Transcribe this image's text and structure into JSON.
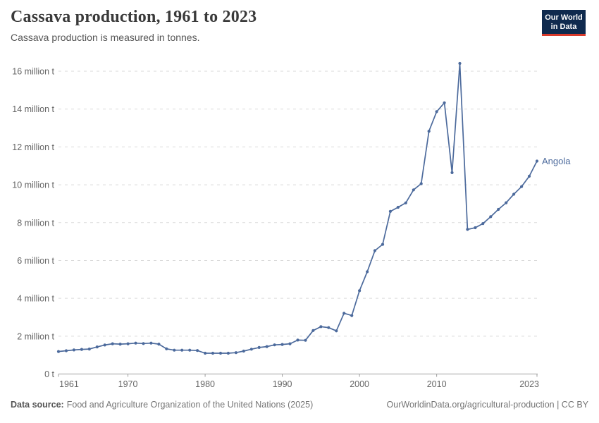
{
  "header": {
    "title": "Cassava production, 1961 to 2023",
    "subtitle": "Cassava production is measured in tonnes.",
    "logo_line1": "Our World",
    "logo_line2": "in Data"
  },
  "chart_data": {
    "type": "line",
    "title": "Cassava production, 1961 to 2023",
    "unit": "million tonnes",
    "xlabel": "",
    "ylabel": "tonnes",
    "xlim": [
      1961,
      2023
    ],
    "ylim": [
      0,
      16
    ],
    "grid": "horizontal-dashed",
    "legend_position": "end-of-line-label",
    "xticks": [
      1961,
      1970,
      1980,
      1990,
      2000,
      2010,
      2023
    ],
    "yticks": [
      {
        "value": 0,
        "label": "0 t"
      },
      {
        "value": 2,
        "label": "2 million t"
      },
      {
        "value": 4,
        "label": "4 million t"
      },
      {
        "value": 6,
        "label": "6 million t"
      },
      {
        "value": 8,
        "label": "8 million t"
      },
      {
        "value": 10,
        "label": "10 million t"
      },
      {
        "value": 12,
        "label": "12 million t"
      },
      {
        "value": 14,
        "label": "14 million t"
      },
      {
        "value": 16,
        "label": "16 million t"
      }
    ],
    "x": [
      1961,
      1962,
      1963,
      1964,
      1965,
      1966,
      1967,
      1968,
      1969,
      1970,
      1971,
      1972,
      1973,
      1974,
      1975,
      1976,
      1977,
      1978,
      1979,
      1980,
      1981,
      1982,
      1983,
      1984,
      1985,
      1986,
      1987,
      1988,
      1989,
      1990,
      1991,
      1992,
      1993,
      1994,
      1995,
      1996,
      1997,
      1998,
      1999,
      2000,
      2001,
      2002,
      2003,
      2004,
      2005,
      2006,
      2007,
      2008,
      2009,
      2010,
      2011,
      2012,
      2013,
      2014,
      2015,
      2016,
      2017,
      2018,
      2019,
      2020,
      2021,
      2022,
      2023
    ],
    "series": [
      {
        "name": "Angola",
        "color": "#4C6A9C",
        "values": [
          1.19,
          1.23,
          1.27,
          1.3,
          1.32,
          1.43,
          1.53,
          1.6,
          1.58,
          1.6,
          1.63,
          1.61,
          1.63,
          1.58,
          1.33,
          1.26,
          1.26,
          1.26,
          1.24,
          1.1,
          1.1,
          1.1,
          1.1,
          1.13,
          1.21,
          1.31,
          1.4,
          1.45,
          1.54,
          1.56,
          1.6,
          1.79,
          1.78,
          2.3,
          2.5,
          2.45,
          2.28,
          3.21,
          3.09,
          4.4,
          5.4,
          6.52,
          6.85,
          8.59,
          8.81,
          9.04,
          9.73,
          10.06,
          12.83,
          13.86,
          14.33,
          10.64,
          16.41,
          7.64,
          7.73,
          7.95,
          8.31,
          8.7,
          9.05,
          9.5,
          9.9,
          10.45,
          11.25
        ]
      }
    ]
  },
  "footer": {
    "data_source_label": "Data source:",
    "data_source_text": "Food and Agriculture Organization of the United Nations (2025)",
    "attribution": "OurWorldinData.org/agricultural-production | CC BY"
  },
  "colors": {
    "series_blue": "#4C6A9C",
    "logo_navy": "#0f2a4e",
    "logo_red": "#d93a2b",
    "gridline": "#dadada",
    "axis": "#9e9e9e",
    "tick_text": "#666666"
  }
}
